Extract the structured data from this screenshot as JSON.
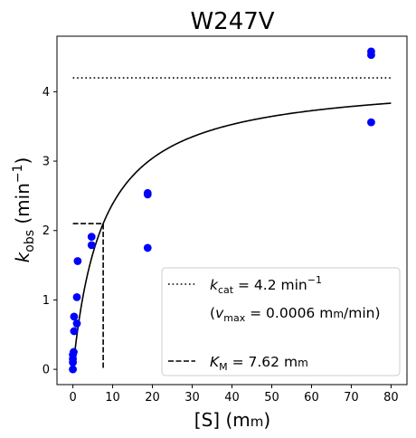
{
  "chart_data": {
    "type": "scatter",
    "title": "W247V",
    "xlabel": {
      "main": "[S] (m",
      "unit_sc": "m",
      "close": ")"
    },
    "ylabel": {
      "k": "k",
      "sub": "obs",
      "mid": " (min",
      "sup": "−1",
      "close": ")"
    },
    "xlim": [
      -4,
      84
    ],
    "ylim": [
      -0.22,
      4.8
    ],
    "xticks": [
      0,
      10,
      20,
      30,
      40,
      50,
      60,
      70,
      80
    ],
    "yticks": [
      0,
      1,
      2,
      3,
      4
    ],
    "grid": false,
    "legend_position": "lower-right",
    "series": [
      {
        "kind": "scatter",
        "color": "#0000ff",
        "points": [
          [
            0,
            0.0
          ],
          [
            0,
            0.1
          ],
          [
            0,
            0.15
          ],
          [
            0,
            0.21
          ],
          [
            0.2,
            0.25
          ],
          [
            0.3,
            0.55
          ],
          [
            0.3,
            0.76
          ],
          [
            1,
            0.66
          ],
          [
            1,
            1.04
          ],
          [
            1.2,
            1.56
          ],
          [
            4.7,
            1.79
          ],
          [
            4.7,
            1.91
          ],
          [
            18.8,
            1.75
          ],
          [
            18.8,
            2.52
          ],
          [
            18.8,
            2.54
          ],
          [
            75,
            3.56
          ],
          [
            75,
            4.53
          ],
          [
            75,
            4.58
          ]
        ]
      },
      {
        "kind": "curve",
        "color": "#000000",
        "kcat": 4.2,
        "km": 7.62,
        "x_range": [
          0,
          80
        ]
      },
      {
        "kind": "hline-dotted",
        "color": "#000000",
        "y": 4.2,
        "x_range": [
          0,
          80
        ]
      },
      {
        "kind": "km-dashed",
        "color": "#000000",
        "x": 7.62,
        "y": 2.1,
        "x_start": 0
      }
    ],
    "legend": {
      "kcat": {
        "k": "k",
        "sub": "cat",
        "mid": " = 4.2 min",
        "sup": "−1"
      },
      "vmax": {
        "open": "(",
        "v": "v",
        "sub": "max",
        "mid": " = 0.0006 m",
        "unit_sc": "m",
        "tail": "/min)"
      },
      "km": {
        "k": "K",
        "sub": "M",
        "mid": " = 7.62 m",
        "unit_sc": "m"
      }
    }
  }
}
